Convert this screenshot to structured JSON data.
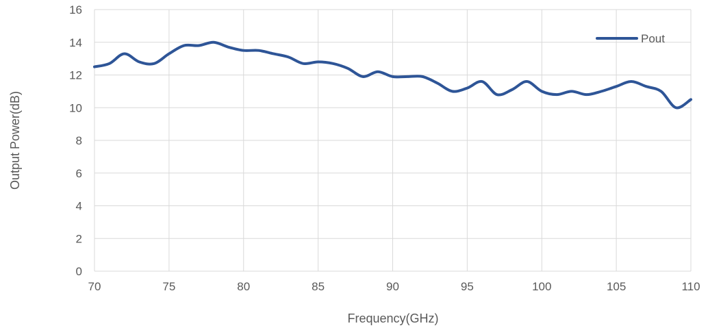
{
  "chart_data": {
    "type": "line",
    "xlabel": "Frequency(GHz)",
    "ylabel": "Output Power(dB)",
    "xlim": [
      70,
      110
    ],
    "ylim": [
      0,
      16
    ],
    "x_ticks": [
      "70",
      "75",
      "80",
      "85",
      "90",
      "95",
      "100",
      "105",
      "110"
    ],
    "y_ticks": [
      "0",
      "2",
      "4",
      "6",
      "8",
      "10",
      "12",
      "14",
      "16"
    ],
    "grid": "both",
    "legend_position": "top-right",
    "series": [
      {
        "name": "Pout",
        "color": "#2E5597",
        "x": [
          70,
          71,
          72,
          73,
          74,
          75,
          76,
          77,
          78,
          79,
          80,
          81,
          82,
          83,
          84,
          85,
          86,
          87,
          88,
          89,
          90,
          91,
          92,
          93,
          94,
          95,
          96,
          97,
          98,
          99,
          100,
          101,
          102,
          103,
          104,
          105,
          106,
          107,
          108,
          109,
          110
        ],
        "y": [
          12.5,
          12.7,
          13.3,
          12.8,
          12.7,
          13.3,
          13.8,
          13.8,
          14.0,
          13.7,
          13.5,
          13.5,
          13.3,
          13.1,
          12.7,
          12.8,
          12.7,
          12.4,
          11.9,
          12.2,
          11.9,
          11.9,
          11.9,
          11.5,
          11.0,
          11.2,
          11.6,
          10.8,
          11.1,
          11.6,
          11.0,
          10.8,
          11.0,
          10.8,
          11.0,
          11.3,
          11.6,
          11.3,
          11.0,
          10.0,
          10.5
        ]
      }
    ]
  }
}
